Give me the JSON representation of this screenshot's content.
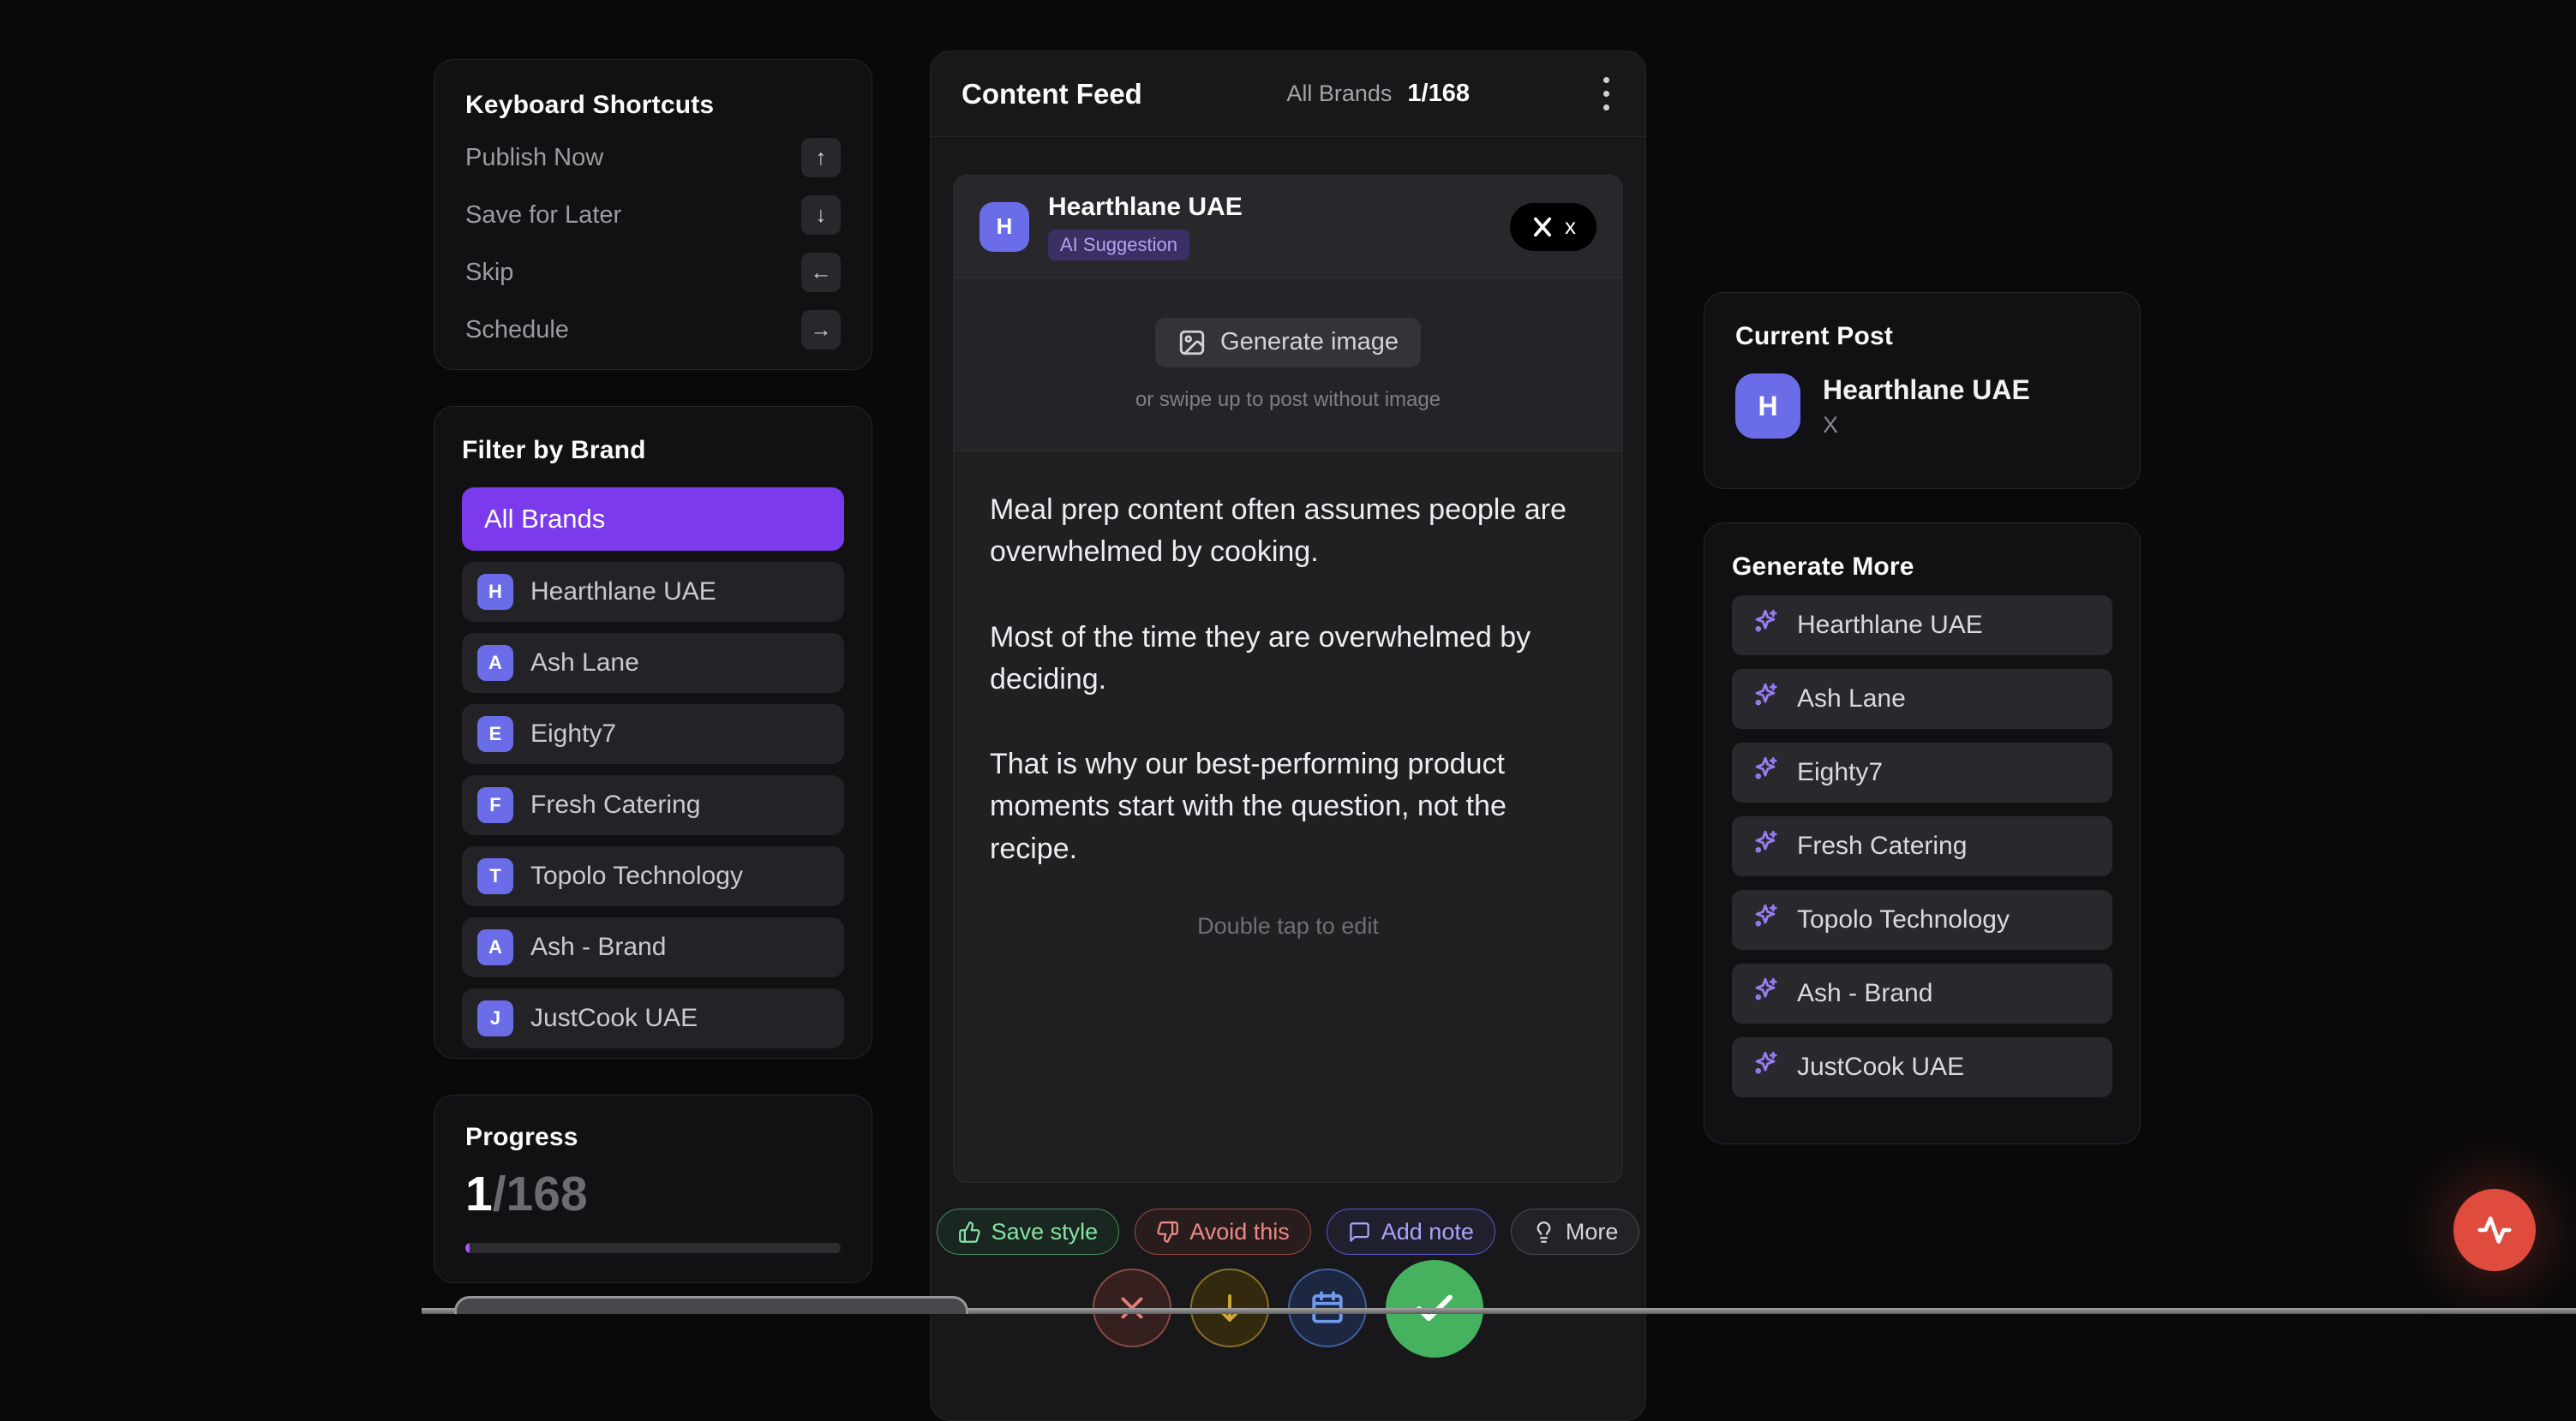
{
  "colors": {
    "accent_purple": "#7c3aed",
    "avatar_indigo": "#6b6ce8",
    "progress_fill": "#a855f7",
    "fab_red": "#df4b3c",
    "save_green": "#86e2a5",
    "avoid_red": "#ee8b85",
    "note_purple": "#a9a4f6"
  },
  "shortcuts": {
    "title": "Keyboard Shortcuts",
    "items": [
      {
        "label": "Publish Now",
        "key": "↑",
        "key_name": "arrow-up"
      },
      {
        "label": "Save for Later",
        "key": "↓",
        "key_name": "arrow-down"
      },
      {
        "label": "Skip",
        "key": "←",
        "key_name": "arrow-left"
      },
      {
        "label": "Schedule",
        "key": "→",
        "key_name": "arrow-right"
      }
    ]
  },
  "filter": {
    "title": "Filter by Brand",
    "all_brands_label": "All Brands",
    "brands": [
      {
        "initial": "H",
        "name": "Hearthlane UAE"
      },
      {
        "initial": "A",
        "name": "Ash Lane"
      },
      {
        "initial": "E",
        "name": "Eighty7"
      },
      {
        "initial": "F",
        "name": "Fresh Catering"
      },
      {
        "initial": "T",
        "name": "Topolo Technology"
      },
      {
        "initial": "A",
        "name": "Ash - Brand"
      },
      {
        "initial": "J",
        "name": "JustCook UAE"
      }
    ]
  },
  "progress": {
    "title": "Progress",
    "current": "1",
    "total": "/168",
    "percent": 1.2
  },
  "feed": {
    "title": "Content Feed",
    "filter_label": "All Brands",
    "counter": "1/168",
    "post": {
      "brand_initial": "H",
      "brand_name": "Hearthlane UAE",
      "badge": "AI Suggestion",
      "platform_badge": "x",
      "generate_image_label": "Generate image",
      "swipe_hint": "or swipe up to post without image",
      "paragraphs": [
        "Meal prep content often assumes people are overwhelmed by cooking.",
        "Most of the time they are overwhelmed by deciding.",
        "That is why our best-performing product moments start with the question, not the recipe."
      ],
      "edit_hint": "Double tap to edit"
    },
    "actions": [
      {
        "label": "Save style",
        "icon": "thumbs-up",
        "variant": "green"
      },
      {
        "label": "Avoid this",
        "icon": "thumbs-down",
        "variant": "red"
      },
      {
        "label": "Add note",
        "icon": "message",
        "variant": "purple"
      },
      {
        "label": "More",
        "icon": "lightbulb",
        "variant": "gray"
      }
    ],
    "quick_actions": [
      {
        "icon": "x",
        "variant": "red"
      },
      {
        "icon": "arrow-down",
        "variant": "amber"
      },
      {
        "icon": "calendar",
        "variant": "blue"
      },
      {
        "icon": "check",
        "variant": "green"
      }
    ]
  },
  "current_post": {
    "title": "Current Post",
    "brand_initial": "H",
    "brand_name": "Hearthlane UAE",
    "platform": "X"
  },
  "generate_more": {
    "title": "Generate More",
    "brands": [
      "Hearthlane UAE",
      "Ash Lane",
      "Eighty7",
      "Fresh Catering",
      "Topolo Technology",
      "Ash - Brand",
      "JustCook UAE"
    ]
  }
}
